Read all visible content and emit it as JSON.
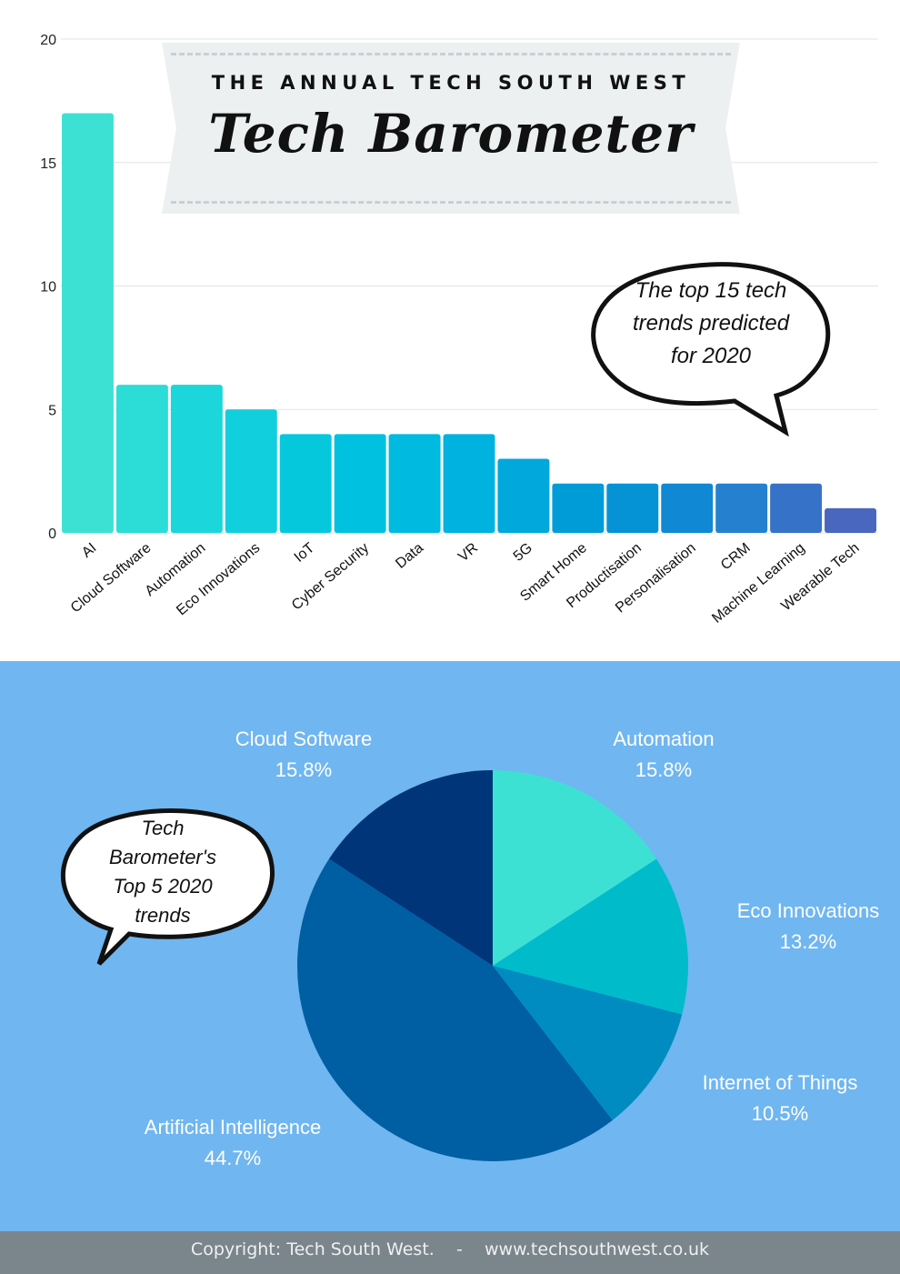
{
  "banner": {
    "subtitle": "THE ANNUAL TECH SOUTH WEST",
    "title": "Tech Barometer"
  },
  "bubble_top": {
    "lines": [
      "The top 15 tech",
      "trends predicted",
      "for 2020"
    ]
  },
  "bubble_pie": {
    "lines": [
      "Tech",
      "Barometer's",
      "Top 5 2020",
      "trends"
    ]
  },
  "chart_data": [
    {
      "type": "bar",
      "categories": [
        "AI",
        "Cloud Software",
        "Automation",
        "Eco Innovations",
        "IoT",
        "Cyber Security",
        "Data",
        "VR",
        "5G",
        "Smart Home",
        "Productisation",
        "Personalisation",
        "CRM",
        "Machine Learning",
        "Wearable Tech"
      ],
      "values": [
        17,
        6,
        6,
        5,
        4,
        4,
        4,
        4,
        3,
        2,
        2,
        2,
        2,
        2,
        1
      ],
      "colors": [
        "#3de1d4",
        "#2cdcd7",
        "#1bd6da",
        "#11cfdc",
        "#05c8dd",
        "#00c1e0",
        "#00bae0",
        "#00b2df",
        "#00a8dc",
        "#009cd8",
        "#0693d6",
        "#1188d3",
        "#2580cf",
        "#3673c8",
        "#4a67bf"
      ],
      "ylim": [
        0,
        20
      ],
      "yticks": [
        0,
        5,
        10,
        15,
        20
      ],
      "grid": true
    },
    {
      "type": "pie",
      "labels": [
        "Automation",
        "Eco Innovations",
        "Internet of Things",
        "Artificial Intelligence",
        "Cloud Software"
      ],
      "values": [
        15.8,
        13.2,
        10.5,
        44.7,
        15.8
      ],
      "value_labels": [
        "15.8%",
        "13.2%",
        "10.5%",
        "44.7%",
        "15.8%"
      ],
      "colors": [
        "#3de1d4",
        "#00bccb",
        "#008cc0",
        "#005ea3",
        "#003679"
      ]
    }
  ],
  "footer": {
    "copyright": "Copyright: Tech South West.",
    "separator": "-",
    "website": "www.techsouthwest.co.uk"
  }
}
